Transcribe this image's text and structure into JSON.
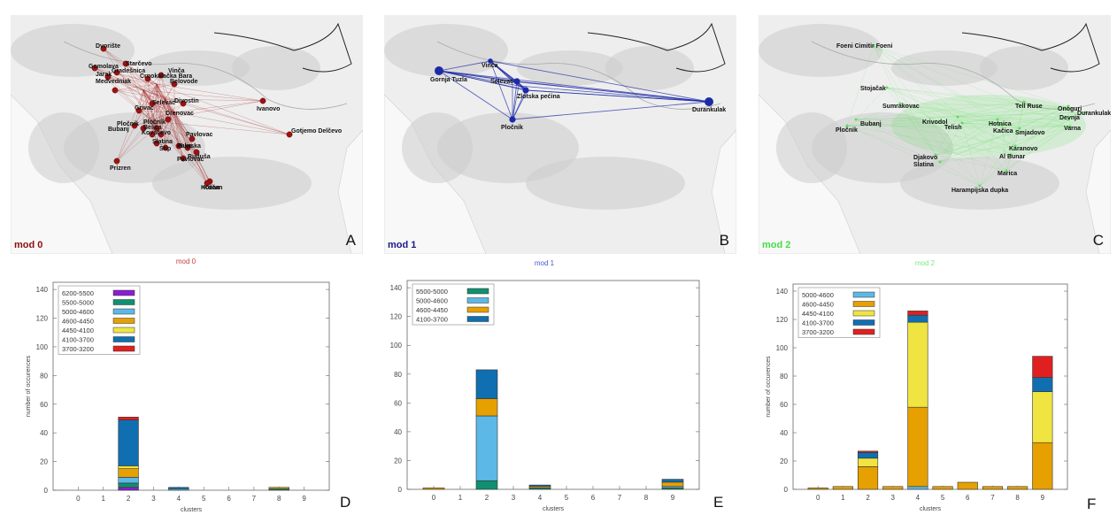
{
  "colors": {
    "mod0": "#9c1212",
    "mod1": "#1c2aa6",
    "mod2": "#5ae05a",
    "ranges": {
      "6200-5500": "#8b1ed2",
      "5500-5000": "#109070",
      "5000-4600": "#5cb8e6",
      "4600-4450": "#e6a000",
      "4450-4100": "#f0e442",
      "4100-3700": "#0f6fb0",
      "3700-3200": "#e02020"
    }
  },
  "maps": [
    {
      "mod_label": "mod 0",
      "letter": "A",
      "places": [
        "Dvorište",
        "Gomolava",
        "Starčevo",
        "Jarak",
        "Medvedniak",
        "Vinča",
        "Belovode",
        "Selevac",
        "Grivac",
        "Drenovac",
        "Pločnik",
        "Belica",
        "Divostin",
        "Ivanovo",
        "Pavlovac",
        "Supska",
        "Gradešnica",
        "Crnokalačka Bara",
        "Pločnik",
        "Bubanj",
        "Kovačevo",
        "Ruduša",
        "Prizren",
        "Kočan",
        "Slatina",
        "Gotjemo Delčevo",
        "Pelin",
        "Štip",
        "Pavlovac",
        "Kočan"
      ]
    },
    {
      "mod_label": "mod 1",
      "letter": "B",
      "places": [
        "Gornja Tuzla",
        "Vinča",
        "Selevac",
        "Zlotska pećina",
        "Pločnik",
        "Durankulak"
      ]
    },
    {
      "mod_label": "mod 2",
      "letter": "C",
      "places": [
        "Foeni Cimitir Foeni",
        "Stojačak",
        "Sumrakovac",
        "Bubanj",
        "Pločnik",
        "Krivodol",
        "Telish",
        "Tell Ruse",
        "Onoguri",
        "Durankulak",
        "Hotnica",
        "Kačica",
        "Smjadovo",
        "Devnja",
        "Varna",
        "Karanovo",
        "Al Bunar",
        "Djakovo",
        "Slatina",
        "Marica",
        "Harampijska dupka"
      ]
    }
  ],
  "chart_data": [
    {
      "type": "bar",
      "title": "mod 0",
      "xlabel": "clusters",
      "ylabel": "number of occurences",
      "ylim": [
        0,
        145
      ],
      "categories": [
        "0",
        "1",
        "2",
        "3",
        "4",
        "5",
        "6",
        "7",
        "8",
        "9"
      ],
      "legend_placement": "top-left",
      "series": [
        {
          "name": "6200-5500",
          "values": [
            0,
            0,
            2,
            0,
            0,
            0,
            0,
            0,
            0,
            0
          ]
        },
        {
          "name": "5500-5000",
          "values": [
            0,
            0,
            3,
            0,
            0,
            0,
            0,
            0,
            1,
            0
          ]
        },
        {
          "name": "5000-4600",
          "values": [
            0,
            0,
            4,
            0,
            1,
            0,
            0,
            0,
            0,
            0
          ]
        },
        {
          "name": "4600-4450",
          "values": [
            0,
            0,
            6,
            0,
            0,
            0,
            0,
            0,
            1,
            0
          ]
        },
        {
          "name": "4450-4100",
          "values": [
            0,
            0,
            2,
            0,
            0,
            0,
            0,
            0,
            0,
            0
          ]
        },
        {
          "name": "4100-3700",
          "values": [
            0,
            0,
            32,
            0,
            1,
            0,
            0,
            0,
            0,
            0
          ]
        },
        {
          "name": "3700-3200",
          "values": [
            0,
            0,
            2,
            0,
            0,
            0,
            0,
            0,
            0,
            0
          ]
        }
      ],
      "letter": "D"
    },
    {
      "type": "bar",
      "title": "mod 1",
      "xlabel": "clusters",
      "ylabel": "number of occurences",
      "ylim": [
        0,
        145
      ],
      "categories": [
        "0",
        "1",
        "2",
        "3",
        "4",
        "5",
        "6",
        "7",
        "8",
        "9"
      ],
      "legend_placement": "top-left",
      "series": [
        {
          "name": "5500-5000",
          "values": [
            0,
            0,
            6,
            0,
            1,
            0,
            0,
            0,
            0,
            1
          ]
        },
        {
          "name": "5000-4600",
          "values": [
            0,
            0,
            45,
            0,
            0,
            0,
            0,
            0,
            0,
            1
          ]
        },
        {
          "name": "4600-4450",
          "values": [
            1,
            0,
            12,
            0,
            1,
            0,
            0,
            0,
            0,
            3
          ]
        },
        {
          "name": "4100-3700",
          "values": [
            0,
            0,
            20,
            0,
            1,
            0,
            0,
            0,
            0,
            2
          ]
        }
      ],
      "letter": "E"
    },
    {
      "type": "bar",
      "title": "mod 2",
      "xlabel": "clusters",
      "ylabel": "number of occurences",
      "ylim": [
        0,
        145
      ],
      "categories": [
        "0",
        "1",
        "2",
        "3",
        "4",
        "5",
        "6",
        "7",
        "8",
        "9"
      ],
      "legend_placement": "top-left",
      "series": [
        {
          "name": "5000-4600",
          "values": [
            0,
            0,
            0,
            0,
            2,
            0,
            0,
            0,
            0,
            0
          ]
        },
        {
          "name": "4600-4450",
          "values": [
            1,
            2,
            16,
            2,
            56,
            2,
            5,
            2,
            2,
            33
          ]
        },
        {
          "name": "4450-4100",
          "values": [
            0,
            0,
            6,
            0,
            60,
            0,
            0,
            0,
            0,
            36
          ]
        },
        {
          "name": "4100-3700",
          "values": [
            0,
            0,
            4,
            0,
            5,
            0,
            0,
            0,
            0,
            10
          ]
        },
        {
          "name": "3700-3200",
          "values": [
            0,
            0,
            1,
            0,
            3,
            0,
            0,
            0,
            0,
            15
          ]
        }
      ],
      "letter": "F"
    }
  ]
}
